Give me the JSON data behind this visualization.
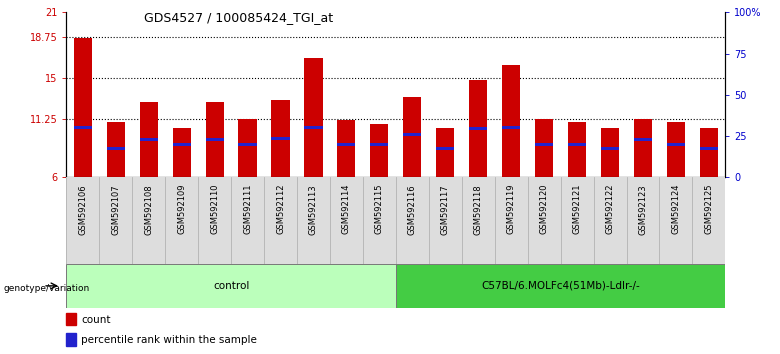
{
  "title": "GDS4527 / 100085424_TGI_at",
  "samples": [
    "GSM592106",
    "GSM592107",
    "GSM592108",
    "GSM592109",
    "GSM592110",
    "GSM592111",
    "GSM592112",
    "GSM592113",
    "GSM592114",
    "GSM592115",
    "GSM592116",
    "GSM592117",
    "GSM592118",
    "GSM592119",
    "GSM592120",
    "GSM592121",
    "GSM592122",
    "GSM592123",
    "GSM592124",
    "GSM592125"
  ],
  "bar_heights": [
    18.7,
    11.0,
    12.8,
    10.5,
    12.8,
    11.3,
    13.0,
    16.8,
    11.2,
    10.8,
    13.3,
    10.5,
    14.8,
    16.2,
    11.3,
    11.0,
    10.5,
    11.3,
    11.0,
    10.5
  ],
  "blue_positions": [
    10.5,
    8.6,
    9.4,
    9.0,
    9.4,
    9.0,
    9.5,
    10.5,
    9.0,
    9.0,
    9.9,
    8.6,
    10.4,
    10.5,
    9.0,
    9.0,
    8.6,
    9.4,
    9.0,
    8.6
  ],
  "bar_color": "#cc0000",
  "blue_color": "#2222cc",
  "ymin": 6,
  "ymax": 21,
  "yticks": [
    6,
    11.25,
    15,
    18.75,
    21
  ],
  "ytick_labels": [
    "6",
    "11.25",
    "15",
    "18.75",
    "21"
  ],
  "hlines": [
    11.25,
    15,
    18.75
  ],
  "right_yticks": [
    0,
    25,
    50,
    75,
    100
  ],
  "right_ytick_labels": [
    "0",
    "25",
    "50",
    "75",
    "100%"
  ],
  "group1_label": "control",
  "group2_label": "C57BL/6.MOLFc4(51Mb)-Ldlr-/-",
  "group1_color": "#bbffbb",
  "group2_color": "#44cc44",
  "genotype_label": "genotype/variation",
  "legend_count": "count",
  "legend_percentile": "percentile rank within the sample",
  "bar_width": 0.55,
  "bg_color": "#ffffff",
  "tick_label_color_left": "#cc0000",
  "tick_label_color_right": "#0000cc"
}
